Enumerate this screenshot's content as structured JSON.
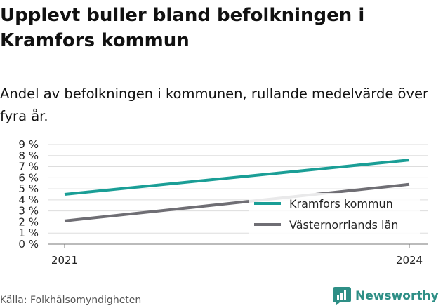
{
  "title": "Upplevt buller bland befolkningen i Kramfors kommun",
  "subtitle": "Andel av befolkningen i kommunen, rullande medelvärde över fyra år.",
  "source": "Källa: Folkhälsomyndigheten",
  "brand": {
    "name": "Newsworthy",
    "color": "#2e8f86",
    "icon": "bar-chart-logo-icon"
  },
  "chart_data": {
    "type": "line",
    "x": [
      2021,
      2024
    ],
    "series": [
      {
        "name": "Kramfors kommun",
        "values": [
          4.5,
          7.6
        ],
        "color": "#1a9e96"
      },
      {
        "name": "Västernorrlands län",
        "values": [
          2.1,
          5.4
        ],
        "color": "#6f6e74"
      }
    ],
    "x_ticks": [
      "2021",
      "2024"
    ],
    "y_ticks": [
      "0 %",
      "1 %",
      "2 %",
      "3 %",
      "4 %",
      "5 %",
      "6 %",
      "7 %",
      "8 %",
      "9 %"
    ],
    "ylim": [
      0,
      9
    ],
    "xlabel": "",
    "ylabel": "",
    "grid": true,
    "legend_position": "bottom-right"
  }
}
